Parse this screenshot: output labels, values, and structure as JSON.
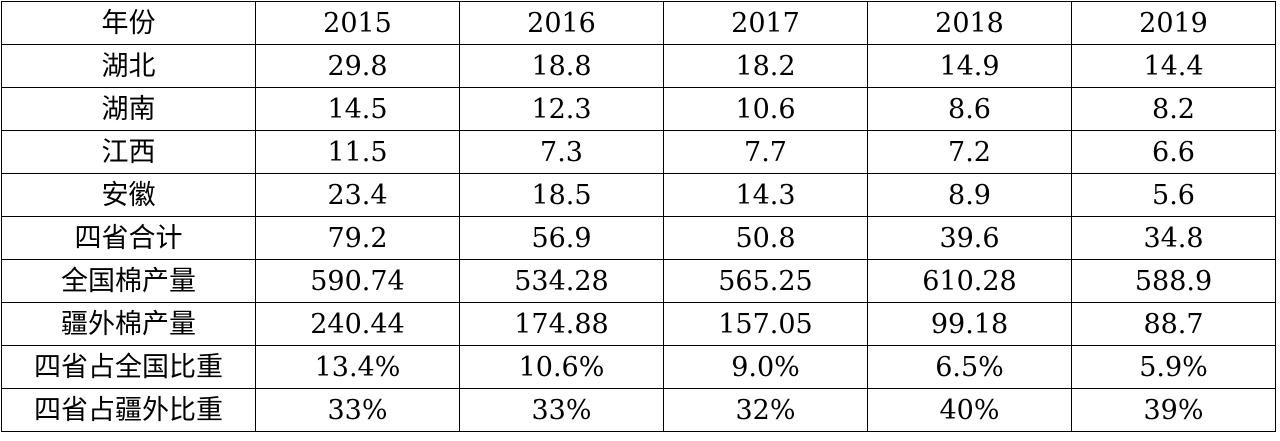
{
  "table": {
    "header": [
      "年份",
      "2015",
      "2016",
      "2017",
      "2018",
      "2019"
    ],
    "rows": [
      [
        "湖北",
        "29.8",
        "18.8",
        "18.2",
        "14.9",
        "14.4"
      ],
      [
        "湖南",
        "14.5",
        "12.3",
        "10.6",
        "8.6",
        "8.2"
      ],
      [
        "江西",
        "11.5",
        "7.3",
        "7.7",
        "7.2",
        "6.6"
      ],
      [
        "安徽",
        "23.4",
        "18.5",
        "14.3",
        "8.9",
        "5.6"
      ],
      [
        "四省合计",
        "79.2",
        "56.9",
        "50.8",
        "39.6",
        "34.8"
      ],
      [
        "全国棉产量",
        "590.74",
        "534.28",
        "565.25",
        "610.28",
        "588.9"
      ],
      [
        "疆外棉产量",
        "240.44",
        "174.88",
        "157.05",
        "99.18",
        "88.7"
      ],
      [
        "四省占全国比重",
        "13.4%",
        "10.6%",
        "9.0%",
        "6.5%",
        "5.9%"
      ],
      [
        "四省占疆外比重",
        "33%",
        "33%",
        "32%",
        "40%",
        "39%"
      ]
    ]
  }
}
